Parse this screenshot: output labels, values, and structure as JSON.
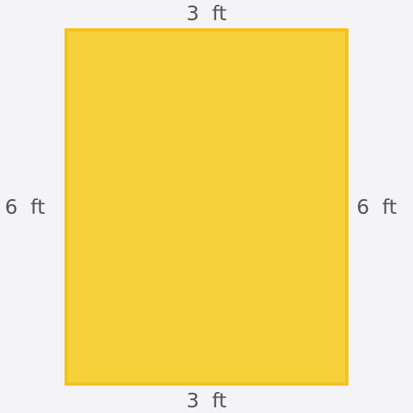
{
  "shape": {
    "type": "rectangle",
    "fill_color": "#f6d13a",
    "border_color": "#f3c21b"
  },
  "labels": {
    "top": "3  ft",
    "bottom": "3  ft",
    "left": "6  ft",
    "right": "6  ft"
  },
  "text_color": "#555555",
  "background_color": "#f4f4f6"
}
